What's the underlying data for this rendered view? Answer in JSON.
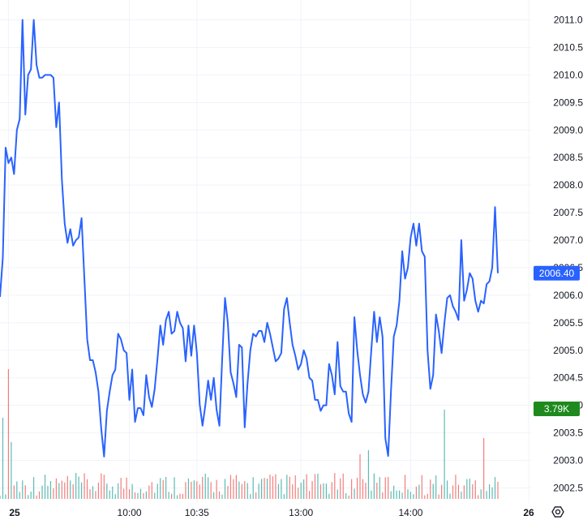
{
  "chart_data": {
    "type": "line",
    "colors": {
      "line": "#2962ff",
      "up_volume": "#26a69a",
      "down_volume": "#ef5350",
      "last_price_badge": "#2962ff",
      "volume_badge": "#1e8a1e",
      "grid": "#f0f3fa"
    },
    "y_ticks": [
      "2011.00",
      "2010.50",
      "2010.00",
      "2009.50",
      "2009.00",
      "2008.50",
      "2008.00",
      "2007.50",
      "2007.00",
      "2006.50",
      "2006.00",
      "2005.50",
      "2005.00",
      "2004.50",
      "2004.00",
      "2003.50",
      "2003.00",
      "2002.50"
    ],
    "ylim": [
      2002.2,
      2011.3
    ],
    "x_ticks": [
      {
        "label": "25",
        "bold": true,
        "index": 3
      },
      {
        "label": "10:00",
        "bold": false,
        "index": 46
      },
      {
        "label": "10:35",
        "bold": false,
        "index": 70
      },
      {
        "label": "13:00",
        "bold": false,
        "index": 107
      },
      {
        "label": "14:00",
        "bold": false,
        "index": 146
      },
      {
        "label": "26",
        "bold": true,
        "index": 176
      }
    ],
    "last_price": "2006.40",
    "volume_label": "3.79K",
    "series": [
      {
        "values": [
          2005.97,
          2006.68,
          2008.68,
          2008.4,
          2008.5,
          2008.2,
          2009.0,
          2009.2,
          2011.0,
          2009.28,
          2010.0,
          2010.1,
          2011.0,
          2010.18,
          2009.95,
          2009.95,
          2010.0,
          2010.0,
          2010.0,
          2009.95,
          2009.05,
          2009.5,
          2008.1,
          2007.3,
          2006.95,
          2007.2,
          2006.9,
          2007.0,
          2007.05,
          2007.4,
          2006.3,
          2005.2,
          2004.82,
          2004.82,
          2004.6,
          2004.25,
          2003.57,
          2003.07,
          2003.9,
          2004.25,
          2004.55,
          2004.65,
          2005.3,
          2005.2,
          2005.0,
          2004.95,
          2004.1,
          2004.65,
          2003.7,
          2003.95,
          2003.95,
          2003.82,
          2004.55,
          2004.15,
          2003.97,
          2004.3,
          2004.85,
          2005.45,
          2005.1,
          2005.55,
          2005.7,
          2005.3,
          2005.35,
          2005.7,
          2005.5,
          2005.4,
          2004.8,
          2005.45,
          2004.9,
          2005.45,
          2004.95,
          2004.02,
          2003.63,
          2004.0,
          2004.45,
          2004.1,
          2004.5,
          2003.92,
          2003.63,
          2004.85,
          2005.95,
          2005.5,
          2004.6,
          2004.4,
          2004.15,
          2005.1,
          2005.05,
          2003.6,
          2004.4,
          2005.0,
          2005.3,
          2005.25,
          2005.35,
          2005.35,
          2005.15,
          2005.5,
          2005.3,
          2005.05,
          2004.8,
          2004.85,
          2004.95,
          2005.75,
          2005.95,
          2005.5,
          2005.1,
          2004.9,
          2004.65,
          2004.75,
          2005.0,
          2004.85,
          2004.5,
          2004.45,
          2004.1,
          2004.1,
          2003.9,
          2004.0,
          2004.0,
          2004.75,
          2004.55,
          2004.2,
          2005.15,
          2004.35,
          2004.25,
          2004.25,
          2003.85,
          2003.7,
          2005.6,
          2005.0,
          2004.55,
          2004.2,
          2004.05,
          2004.25,
          2005.0,
          2005.7,
          2005.15,
          2005.6,
          2005.25,
          2003.4,
          2003.08,
          2004.25,
          2005.25,
          2005.45,
          2005.9,
          2006.8,
          2006.3,
          2006.5,
          2007.05,
          2007.3,
          2006.9,
          2007.3,
          2006.8,
          2006.7,
          2005.0,
          2004.3,
          2004.55,
          2005.65,
          2005.35,
          2004.95,
          2005.5,
          2005.95,
          2006.0,
          2005.8,
          2005.7,
          2005.55,
          2007.0,
          2005.9,
          2006.1,
          2006.4,
          2006.3,
          2005.9,
          2005.7,
          2005.9,
          2005.85,
          2006.2,
          2006.25,
          2006.5,
          2007.6,
          2006.4
        ],
        "volume_up": [
          0,
          0,
          0,
          0,
          0,
          0,
          0,
          0,
          0,
          0,
          0,
          0,
          0,
          0,
          0,
          0,
          0,
          0,
          0,
          0,
          0,
          0,
          0,
          0,
          0,
          0,
          0,
          0,
          0,
          0,
          0,
          0,
          0,
          0,
          0,
          0,
          0,
          0,
          0,
          0,
          0,
          0,
          0,
          0,
          0,
          0,
          0,
          0,
          0,
          0,
          0,
          0,
          0,
          0,
          0,
          0,
          0,
          0,
          0,
          0,
          0,
          0,
          0,
          0,
          0,
          0,
          0,
          0,
          0,
          0,
          0,
          0,
          0,
          0,
          0,
          0,
          0,
          0,
          0,
          0,
          0,
          0,
          0,
          0,
          0,
          0,
          0,
          0,
          0,
          0,
          0,
          0,
          0,
          0,
          0,
          0,
          0,
          0,
          0,
          0,
          0,
          0,
          0,
          0,
          0,
          0,
          0,
          0,
          0,
          0,
          0,
          0,
          0,
          0,
          0,
          0,
          0,
          0,
          0,
          0,
          0,
          0,
          0,
          0,
          0,
          0,
          0,
          0,
          0,
          0,
          0,
          0,
          0,
          0,
          0,
          0,
          0,
          0,
          0,
          0,
          0,
          0,
          0,
          0,
          0,
          0,
          0,
          0,
          0,
          0,
          0,
          0,
          0,
          0,
          0,
          0,
          0,
          0,
          0,
          0,
          0,
          0,
          0,
          0,
          0,
          0,
          0,
          0,
          0,
          0,
          0,
          0,
          0,
          0,
          0,
          0,
          0,
          0,
          0,
          0,
          0,
          0,
          0,
          0
        ]
      }
    ]
  }
}
